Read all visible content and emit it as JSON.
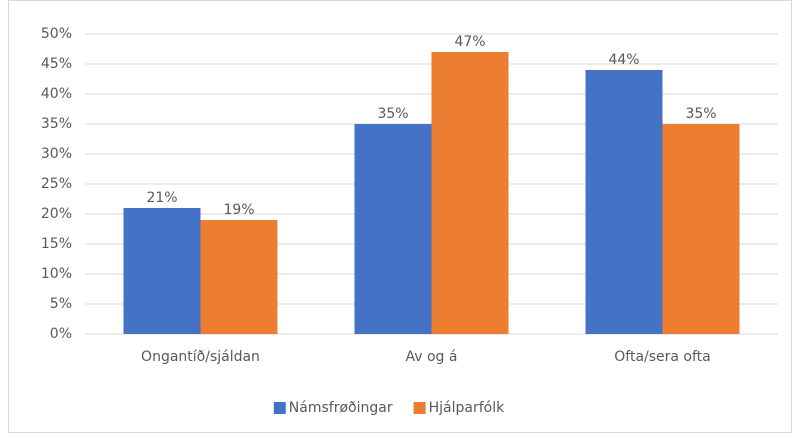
{
  "chart_data": {
    "type": "bar",
    "categories": [
      "Ongantíð/sjáldan",
      "Av og á",
      "Ofta/sera ofta"
    ],
    "series": [
      {
        "name": "Námsfrøðingar",
        "color": "#4472c4",
        "values": [
          21,
          35,
          44
        ],
        "value_labels": [
          "21%",
          "35%",
          "44%"
        ]
      },
      {
        "name": "Hjálparfólk",
        "color": "#ed7d31",
        "values": [
          19,
          47,
          35
        ],
        "value_labels": [
          "19%",
          "47%",
          "35%"
        ]
      }
    ],
    "ylim": [
      0,
      50
    ],
    "yticks": [
      {
        "value": 0,
        "label": "0%"
      },
      {
        "value": 5,
        "label": "5%"
      },
      {
        "value": 10,
        "label": "10%"
      },
      {
        "value": 15,
        "label": "15%"
      },
      {
        "value": 20,
        "label": "20%"
      },
      {
        "value": 25,
        "label": "25%"
      },
      {
        "value": 30,
        "label": "30%"
      },
      {
        "value": 35,
        "label": "35%"
      },
      {
        "value": 40,
        "label": "40%"
      },
      {
        "value": 45,
        "label": "45%"
      },
      {
        "value": 50,
        "label": "50%"
      }
    ],
    "grid": true,
    "legend": "bottom"
  }
}
